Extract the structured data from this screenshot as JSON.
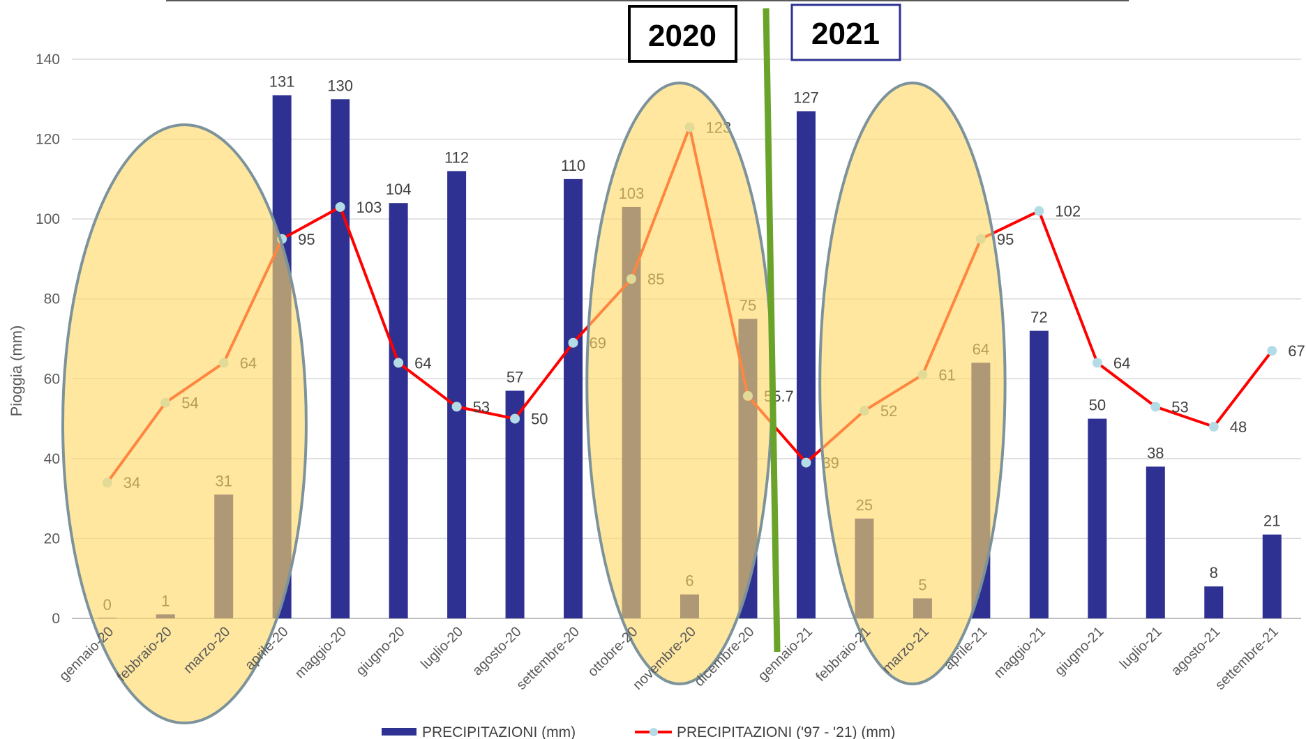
{
  "chart_data": {
    "type": "bar",
    "title": "",
    "xlabel": "",
    "ylabel": "Pioggia (mm)",
    "ylim": [
      0,
      140
    ],
    "yticks": [
      0,
      20,
      40,
      60,
      80,
      100,
      120,
      140
    ],
    "grid": true,
    "legend_position": "bottom",
    "categories": [
      "gennaio-20",
      "febbraio-20",
      "marzo-20",
      "aprile-20",
      "maggio-20",
      "giugno-20",
      "luglio-20",
      "agosto-20",
      "settembre-20",
      "ottobre-20",
      "novembre-20",
      "dicembre-20",
      "gennaio-21",
      "febbraio-21",
      "marzo-21",
      "aprile-21",
      "maggio-21",
      "giugno-21",
      "luglio-21",
      "agosto-21",
      "settembre-21"
    ],
    "series": [
      {
        "name": "PRECIPITAZIONI (mm)",
        "type": "bar",
        "color": "#2E3192",
        "values": [
          0,
          1,
          31,
          131,
          130,
          104,
          112,
          57,
          110,
          103,
          6,
          75,
          127,
          25,
          5,
          64,
          72,
          50,
          38,
          8,
          21
        ],
        "labels": [
          "0",
          "1",
          "31",
          "131",
          "130",
          "104",
          "112",
          "57",
          "110",
          "103",
          "6",
          "75",
          "127",
          "25",
          "5",
          "64",
          "72",
          "50",
          "38",
          "8",
          "21"
        ]
      },
      {
        "name": "PRECIPITAZIONI ('97 - '21) (mm)",
        "type": "line",
        "color": "#FF0000",
        "marker_color": "#B4DCE6",
        "values": [
          34,
          54,
          64,
          95,
          103,
          64,
          53,
          50,
          69,
          85,
          123,
          55.7,
          39,
          52,
          61,
          95,
          102,
          64,
          53,
          48,
          67
        ],
        "labels": [
          "34",
          "54",
          "64",
          "95",
          "103",
          "64",
          "53",
          "50",
          "69",
          "85",
          "123",
          "55.7",
          "39",
          "52",
          "61",
          "95",
          "102",
          "64",
          "53",
          "48",
          "67"
        ]
      }
    ],
    "annotations": {
      "year_left": "2020",
      "year_right": "2021",
      "highlight_color": "#FFD966",
      "divider_color": "#6AA329",
      "highlights": [
        {
          "from": "gennaio-20",
          "to": "aprile-20"
        },
        {
          "from": "ottobre-20",
          "to": "dicembre-20"
        },
        {
          "from": "febbraio-21",
          "to": "aprile-21"
        }
      ]
    }
  }
}
